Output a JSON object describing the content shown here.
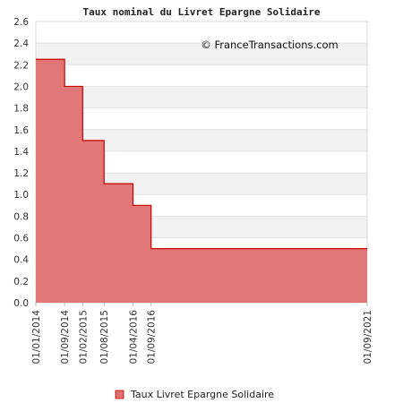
{
  "chart_data": {
    "type": "area",
    "title": "Taux nominal du Livret Epargne  Solidaire",
    "credit": "© FranceTransactions.com",
    "legend": {
      "label": "Taux Livret Epargne  Solidaire",
      "placement": "bottom-center"
    },
    "y_ticks": [
      "0.0",
      "0.2",
      "0.4",
      "0.6",
      "0.8",
      "1.0",
      "1.2",
      "1.4",
      "1.6",
      "1.8",
      "2.0",
      "2.2",
      "2.4",
      "2.6"
    ],
    "ylim": [
      0,
      2.6
    ],
    "x_ticks": [
      "01/01/2014",
      "01/09/2014",
      "01/02/2015",
      "01/08/2015",
      "01/04/2016",
      "01/09/2016",
      "01/09/2021"
    ],
    "step": "post",
    "x": [
      "2014-01-01",
      "2014-09-01",
      "2015-02-01",
      "2015-08-01",
      "2016-04-01",
      "2016-09-01",
      "2021-09-01"
    ],
    "values": [
      2.25,
      2.0,
      1.5,
      1.1,
      0.9,
      0.5,
      0.5
    ],
    "grid": "horizontal-bands",
    "colors": {
      "fill": "#e07070",
      "line": "#cc0000",
      "band": "#f2f2f2",
      "axis": "#d8d8d8"
    }
  }
}
